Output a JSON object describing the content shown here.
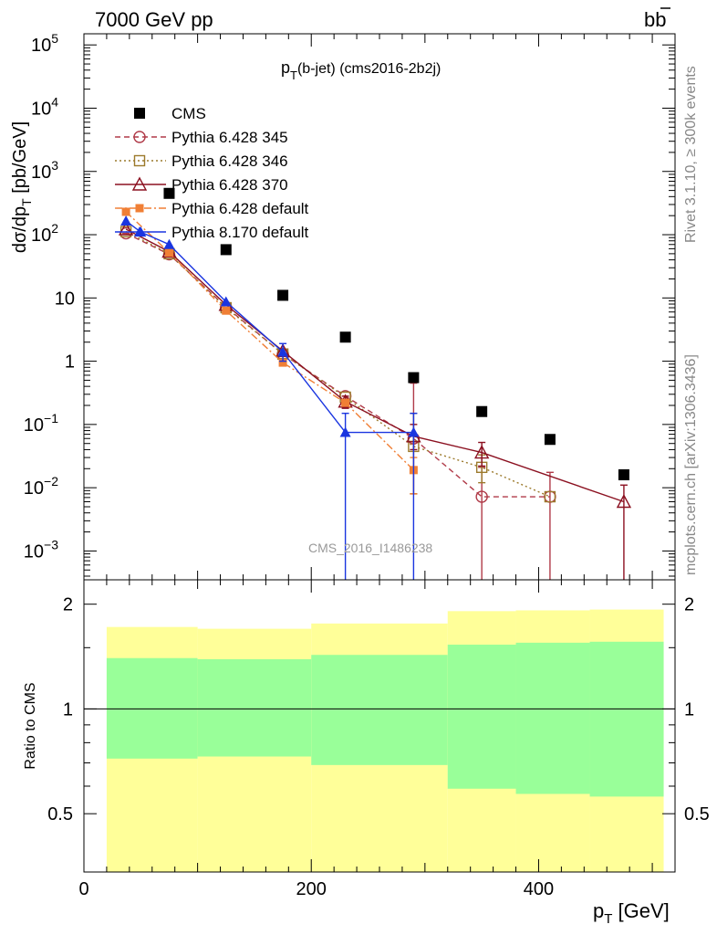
{
  "header": {
    "left": "7000 GeV pp",
    "right": "b",
    "right_bar": "b"
  },
  "side_labels": {
    "rivet_a": "Rivet 3.1.10, ",
    "rivet_b": "≥",
    "rivet_c": " 300k events",
    "mcplots": "mcplots.cern.ch [arXiv:1306.3436]"
  },
  "colors": {
    "cms": "#000000",
    "p345": "#b03a48",
    "p346": "#9c7a2c",
    "p370": "#8b1020",
    "p6def": "#f07f35",
    "p8def": "#1a35e0",
    "band_inner": "#99ff99",
    "band_outer": "#ffff99"
  },
  "chart_data": [
    {
      "type": "scatter",
      "title_main": "p",
      "title_sub": "T",
      "title_rest": "(b-jet) (cms2016-2b2j)",
      "watermark": "CMS_2016_I1486238",
      "ylabel": {
        "a": "d",
        "b": "σ",
        "c": "/dp",
        "sub": "T",
        "d": " [pb/GeV]"
      },
      "yscale": "log",
      "xlim": [
        0,
        520
      ],
      "ylim": [
        0.00035,
        150000
      ],
      "yticks": [
        {
          "v": 0.001,
          "base": "10",
          "exp": "−3"
        },
        {
          "v": 0.01,
          "base": "10",
          "exp": "−2"
        },
        {
          "v": 0.1,
          "base": "10",
          "exp": "−1"
        },
        {
          "v": 1,
          "base": "1",
          "exp": ""
        },
        {
          "v": 10,
          "base": "10",
          "exp": ""
        },
        {
          "v": 100,
          "base": "10",
          "exp": "2"
        },
        {
          "v": 1000,
          "base": "10",
          "exp": "3"
        },
        {
          "v": 10000,
          "base": "10",
          "exp": "4"
        },
        {
          "v": 100000,
          "base": "10",
          "exp": "5"
        }
      ],
      "legend_position": "top-left",
      "series": [
        {
          "name": "CMS",
          "key": "cms",
          "style": "points",
          "marker": "square-filled",
          "x": [
            75,
            125,
            175,
            230,
            290,
            350,
            410,
            475
          ],
          "y": [
            450,
            58,
            11,
            2.4,
            0.55,
            0.16,
            0.058,
            0.016
          ]
        },
        {
          "name": "Pythia 6.428 345",
          "key": "p345",
          "style": "dashed",
          "marker": "circle-open",
          "x": [
            37,
            75,
            125,
            175,
            230,
            290,
            350,
            410
          ],
          "y": [
            105,
            49,
            7.2,
            1.3,
            0.28,
            0.06,
            0.0072,
            0.0072
          ],
          "err": [
            [
              37,
              105,
              105,
              105
            ],
            [
              290,
              0.06,
              0.008,
              0.45
            ],
            [
              350,
              0.0072,
              0.0001,
              0.021
            ],
            [
              410,
              0.0072,
              0.0001,
              0.0175
            ]
          ]
        },
        {
          "name": "Pythia 6.428 346",
          "key": "p346",
          "style": "dotted",
          "marker": "square-open",
          "x": [
            37,
            75,
            125,
            175,
            230,
            290,
            350,
            410
          ],
          "y": [
            112,
            50,
            7,
            1.3,
            0.27,
            0.045,
            0.021,
            0.0072
          ],
          "err": [
            [
              175,
              1.3,
              1.1,
              1.5
            ],
            [
              290,
              0.045,
              0.008,
              0.15
            ],
            [
              350,
              0.021,
              0.012,
              0.033
            ]
          ]
        },
        {
          "name": "Pythia 6.428 370",
          "key": "p370",
          "style": "solid",
          "marker": "triangle-open",
          "x": [
            37,
            75,
            125,
            175,
            230,
            290,
            350,
            475
          ],
          "y": [
            122,
            54,
            7.8,
            1.45,
            0.23,
            0.065,
            0.036,
            0.006
          ],
          "err": [
            [
              230,
              0.23,
              0.18,
              0.28
            ],
            [
              290,
              0.065,
              0.04,
              0.1
            ],
            [
              350,
              0.036,
              0.022,
              0.052
            ],
            [
              475,
              0.006,
              0.0001,
              0.011
            ]
          ]
        },
        {
          "name": "Pythia 6.428 default",
          "key": "p6def",
          "style": "dashdot",
          "marker": "square-filled-small",
          "x": [
            37,
            75,
            125,
            175,
            230,
            290
          ],
          "y": [
            230,
            52,
            6.3,
            0.95,
            0.22,
            0.019
          ],
          "err": [
            [
              290,
              0.019,
              0.008,
              0.03
            ]
          ]
        },
        {
          "name": "Pythia 8.170 default",
          "key": "p8def",
          "style": "solid",
          "marker": "triangle-filled",
          "x": [
            37,
            50,
            75,
            125,
            175,
            230,
            290
          ],
          "y": [
            165,
            110,
            70,
            8.7,
            1.4,
            0.075,
            0.075
          ],
          "err": [
            [
              175,
              1.4,
              1.0,
              1.9
            ],
            [
              230,
              0.075,
              0.0001,
              0.15
            ],
            [
              290,
              0.075,
              0.0001,
              0.15
            ]
          ]
        }
      ]
    },
    {
      "type": "area",
      "ylabel": "Ratio to CMS",
      "xlabel": {
        "a": "p",
        "sub": "T",
        "b": " [GeV]"
      },
      "xlim": [
        0,
        520
      ],
      "ylim": [
        0.34,
        2.35
      ],
      "xticks": [
        0,
        200,
        400
      ],
      "yticks": [
        {
          "v": 0.5,
          "label": "0.5"
        },
        {
          "v": 1,
          "label": "1"
        },
        {
          "v": 2,
          "label": "2"
        }
      ],
      "reference_line": 1,
      "bins": [
        {
          "x0": 20,
          "x1": 100,
          "inner": [
            0.72,
            1.4
          ],
          "outer": [
            0.34,
            1.72
          ]
        },
        {
          "x0": 100,
          "x1": 200,
          "inner": [
            0.73,
            1.39
          ],
          "outer": [
            0.34,
            1.7
          ]
        },
        {
          "x0": 200,
          "x1": 320,
          "inner": [
            0.69,
            1.43
          ],
          "outer": [
            0.34,
            1.76
          ]
        },
        {
          "x0": 320,
          "x1": 380,
          "inner": [
            0.59,
            1.53
          ],
          "outer": [
            0.34,
            1.91
          ]
        },
        {
          "x0": 380,
          "x1": 445,
          "inner": [
            0.57,
            1.55
          ],
          "outer": [
            0.34,
            1.92
          ]
        },
        {
          "x0": 445,
          "x1": 510,
          "inner": [
            0.56,
            1.56
          ],
          "outer": [
            0.34,
            1.93
          ]
        }
      ]
    }
  ]
}
